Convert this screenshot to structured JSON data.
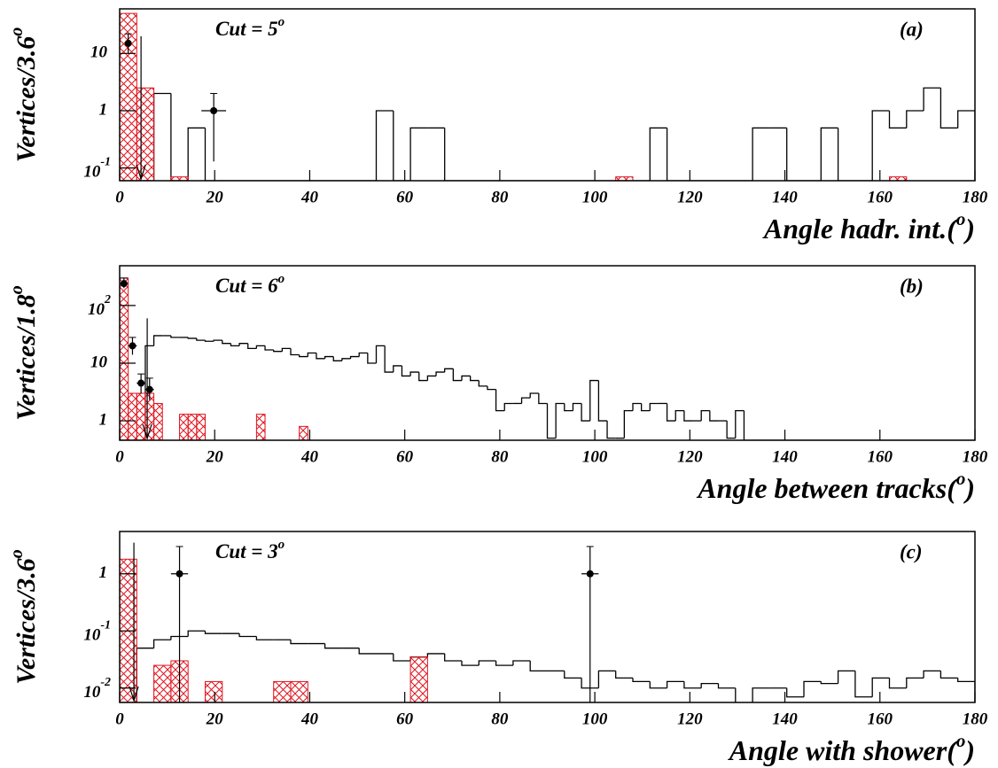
{
  "chart_data": [
    {
      "type": "histogram",
      "annotation": [
        "Cut = 5",
        "o"
      ],
      "label": "(a)",
      "xlabel": [
        "Angle hadr. int.(",
        "o",
        ")"
      ],
      "ylabel": [
        "Vertices/3.6",
        "o"
      ],
      "log_y": true,
      "xlim": [
        0,
        180
      ],
      "ylim": [
        0.06,
        60
      ],
      "xticks": [
        0,
        20,
        40,
        60,
        80,
        100,
        120,
        140,
        160,
        180
      ],
      "yticks": [
        {
          "value": 0.1,
          "label": "10",
          "sup": "-1"
        },
        1,
        10
      ],
      "bins": [
        0,
        3.6,
        7.2,
        10.8,
        14.4,
        18,
        21.6,
        25.2,
        28.8,
        32.4,
        36,
        39.6,
        43.2,
        46.8,
        50.4,
        54,
        57.6,
        61.2,
        64.8,
        68.4,
        72,
        75.6,
        79.2,
        82.8,
        86.4,
        90,
        93.6,
        97.2,
        100.8,
        104.4,
        108,
        111.6,
        115.2,
        118.8,
        122.4,
        126,
        129.6,
        133.2,
        136.8,
        140.4,
        144,
        147.6,
        151.2,
        154.8,
        158.4,
        162,
        165.6,
        169.2,
        172.8,
        176.4,
        180
      ],
      "series": [
        {
          "color": "#000000",
          "hatch": false,
          "values": [
            0,
            0,
            2,
            0,
            0.5,
            0,
            0,
            0,
            0,
            0,
            0,
            0,
            0,
            0,
            0,
            1,
            0,
            0.5,
            0.5,
            0,
            0,
            0,
            0,
            0,
            0,
            0,
            0,
            0,
            0,
            0,
            0,
            0.5,
            0,
            0,
            0,
            0,
            0,
            0.5,
            0.5,
            0,
            0,
            0.5,
            0,
            0,
            1,
            0.5,
            1,
            2.5,
            0.5,
            1
          ]
        },
        {
          "color": "#e0141e",
          "hatch": true,
          "values": [
            50,
            2.5,
            0,
            0.07,
            0,
            0,
            0,
            0,
            0,
            0,
            0,
            0,
            0,
            0,
            0,
            0,
            0,
            0,
            0,
            0,
            0,
            0,
            0,
            0,
            0,
            0,
            0,
            0,
            0,
            0.07,
            0,
            0,
            0,
            0,
            0,
            0,
            0,
            0,
            0,
            0,
            0,
            0,
            0,
            0,
            0,
            0.07,
            0,
            0,
            0,
            0
          ]
        }
      ],
      "points": {
        "x": [
          1.8,
          19.8
        ],
        "y": [
          15,
          1
        ],
        "xerr": [
          0,
          2.6
        ],
        "yerr_low": [
          5,
          0.87
        ],
        "yerr_high": [
          7,
          1
        ]
      },
      "upper_limits": {
        "x": [
          4.5
        ],
        "y": [
          20
        ]
      }
    },
    {
      "type": "histogram",
      "annotation": [
        "Cut = 6",
        "o"
      ],
      "label": "(b)",
      "xlabel": [
        "Angle between tracks(",
        "o",
        ")"
      ],
      "ylabel": [
        "Vertices/1.8",
        "o"
      ],
      "log_y": true,
      "xlim": [
        0,
        180
      ],
      "ylim": [
        0.46,
        490
      ],
      "xticks": [
        0,
        20,
        40,
        60,
        80,
        100,
        120,
        140,
        160,
        180
      ],
      "yticks": [
        1,
        10,
        {
          "value": 100,
          "label": "10",
          "sup": "2"
        }
      ],
      "bins": [
        0,
        1.8,
        3.6,
        5.4,
        7.2,
        9,
        10.8,
        12.6,
        14.4,
        16.2,
        18,
        19.8,
        21.6,
        23.4,
        25.2,
        27,
        28.8,
        30.6,
        32.4,
        34.2,
        36,
        37.8,
        39.6,
        41.4,
        43.2,
        45,
        46.8,
        48.6,
        50.4,
        52.2,
        54,
        55.8,
        57.6,
        59.4,
        61.2,
        63,
        64.8,
        66.6,
        68.4,
        70.2,
        72,
        73.8,
        75.6,
        77.4,
        79.2,
        81,
        82.8,
        84.6,
        86.4,
        88.2,
        90,
        91.8,
        93.6,
        95.4,
        97.2,
        99,
        100.8,
        102.6,
        104.4,
        106.2,
        108,
        109.8,
        111.6,
        113.4,
        115.2,
        117,
        118.8,
        120.6,
        122.4,
        124.2,
        126,
        127.8,
        129.6,
        131.4,
        133.2,
        135,
        136.8,
        138.6,
        140.4,
        142.2,
        144,
        145.8,
        147.6,
        149.4,
        151.2,
        153,
        154.8,
        156.6,
        158.4,
        160.2,
        162,
        163.8,
        165.6,
        167.4,
        169.2,
        171,
        172.8,
        174.6,
        176.4,
        178.2,
        180
      ],
      "series": [
        {
          "color": "#000000",
          "hatch": false,
          "values": [
            0,
            0,
            0,
            20,
            30,
            30,
            28,
            28,
            27,
            25,
            24,
            25,
            22,
            20,
            22,
            18,
            20,
            17,
            16,
            18,
            14,
            13,
            15,
            12,
            13,
            11,
            12,
            13,
            15,
            10,
            20,
            7,
            9,
            6,
            7,
            5,
            6,
            7,
            8,
            5,
            6,
            5,
            4,
            3.5,
            1.5,
            2,
            2,
            2.5,
            3,
            2,
            0.5,
            2,
            1.5,
            2,
            1,
            5,
            1,
            0.5,
            0.5,
            1.5,
            2,
            1.5,
            2,
            2,
            1,
            1.5,
            1,
            1,
            1.5,
            1,
            1,
            0.5,
            1.5,
            0,
            0,
            0,
            0,
            0,
            0,
            0,
            0,
            0,
            0,
            0,
            0,
            0,
            0,
            0,
            0,
            0,
            0,
            0,
            0,
            0,
            0,
            0,
            0,
            0,
            0,
            0
          ]
        },
        {
          "color": "#e0141e",
          "hatch": true,
          "values": [
            300,
            3,
            3,
            3,
            2,
            0,
            0,
            1.3,
            1.3,
            1.3,
            0,
            0,
            0,
            0,
            0,
            0,
            1.3,
            0,
            0,
            0,
            0,
            0.8,
            0,
            0,
            0,
            0,
            0,
            0,
            0,
            0,
            0,
            0,
            0,
            0,
            0,
            0,
            0,
            0,
            0,
            0,
            0,
            0,
            0,
            0,
            0,
            0,
            0,
            0,
            0,
            0,
            0,
            0,
            0,
            0,
            0,
            0,
            0,
            0,
            0,
            0,
            0,
            0,
            0,
            0,
            0,
            0,
            0,
            0,
            0,
            0,
            0,
            0,
            0,
            0,
            0,
            0,
            0,
            0,
            0,
            0,
            0,
            0,
            0,
            0,
            0,
            0,
            0,
            0,
            0,
            0,
            0,
            0,
            0,
            0,
            0,
            0,
            0,
            0,
            0,
            0
          ]
        }
      ],
      "points": {
        "x": [
          0.9,
          2.7,
          4.5,
          6.3
        ],
        "y": [
          240,
          20,
          4.5,
          3.5
        ],
        "xerr": [
          0.9,
          0.9,
          0.9,
          0.9
        ],
        "yerr_low": [
          40,
          6,
          1.5,
          1.2
        ],
        "yerr_high": [
          60,
          8,
          2,
          2
        ]
      },
      "upper_limits": {
        "x": [
          5.8
        ],
        "y": [
          60
        ]
      }
    },
    {
      "type": "histogram",
      "annotation": [
        "Cut = 3",
        "o"
      ],
      "label": "(c)",
      "xlabel": [
        "Angle with shower(",
        "o",
        ")"
      ],
      "ylabel": [
        "Vertices/3.6",
        "o"
      ],
      "log_y": true,
      "xlim": [
        0,
        180
      ],
      "ylim": [
        0.0056,
        5.5
      ],
      "xticks": [
        0,
        20,
        40,
        60,
        80,
        100,
        120,
        140,
        160,
        180
      ],
      "yticks": [
        {
          "value": 0.01,
          "label": "10",
          "sup": "-2"
        },
        {
          "value": 0.1,
          "label": "10",
          "sup": "-1"
        },
        1
      ],
      "bins": [
        0,
        3.6,
        7.2,
        10.8,
        14.4,
        18,
        21.6,
        25.2,
        28.8,
        32.4,
        36,
        39.6,
        43.2,
        46.8,
        50.4,
        54,
        57.6,
        61.2,
        64.8,
        68.4,
        72,
        75.6,
        79.2,
        82.8,
        86.4,
        90,
        93.6,
        97.2,
        100.8,
        104.4,
        108,
        111.6,
        115.2,
        118.8,
        122.4,
        126,
        129.6,
        133.2,
        136.8,
        140.4,
        144,
        147.6,
        151.2,
        154.8,
        158.4,
        162,
        165.6,
        169.2,
        172.8,
        176.4,
        180
      ],
      "series": [
        {
          "color": "#000000",
          "hatch": false,
          "values": [
            0,
            0.05,
            0.07,
            0.08,
            0.1,
            0.09,
            0.09,
            0.08,
            0.07,
            0.07,
            0.06,
            0.06,
            0.05,
            0.05,
            0.04,
            0.04,
            0.03,
            0.035,
            0.04,
            0.03,
            0.025,
            0.03,
            0.025,
            0.03,
            0.02,
            0.02,
            0.015,
            0.01,
            0.02,
            0.015,
            0.013,
            0.01,
            0.013,
            0.01,
            0.012,
            0.01,
            0.005,
            0.01,
            0.01,
            0.007,
            0.013,
            0.012,
            0.02,
            0.007,
            0.015,
            0.01,
            0.015,
            0.02,
            0.015,
            0.013
          ]
        },
        {
          "color": "#e0141e",
          "hatch": true,
          "values": [
            1.8,
            0,
            0.025,
            0.03,
            0,
            0.013,
            0,
            0,
            0,
            0.013,
            0.013,
            0,
            0,
            0,
            0,
            0,
            0,
            0.035,
            0,
            0,
            0,
            0,
            0,
            0,
            0,
            0,
            0,
            0,
            0,
            0,
            0,
            0,
            0,
            0,
            0,
            0,
            0,
            0,
            0,
            0,
            0,
            0,
            0,
            0,
            0,
            0,
            0,
            0,
            0,
            0
          ]
        }
      ],
      "points": {
        "x": [
          12.6,
          99
        ],
        "y": [
          1,
          1
        ],
        "xerr": [
          1.8,
          1.8
        ],
        "yerr_low": [
          0.995,
          0.995
        ],
        "yerr_high": [
          2,
          2
        ]
      },
      "upper_limits": {
        "x": [
          3
        ],
        "y": [
          3.5
        ]
      }
    }
  ]
}
